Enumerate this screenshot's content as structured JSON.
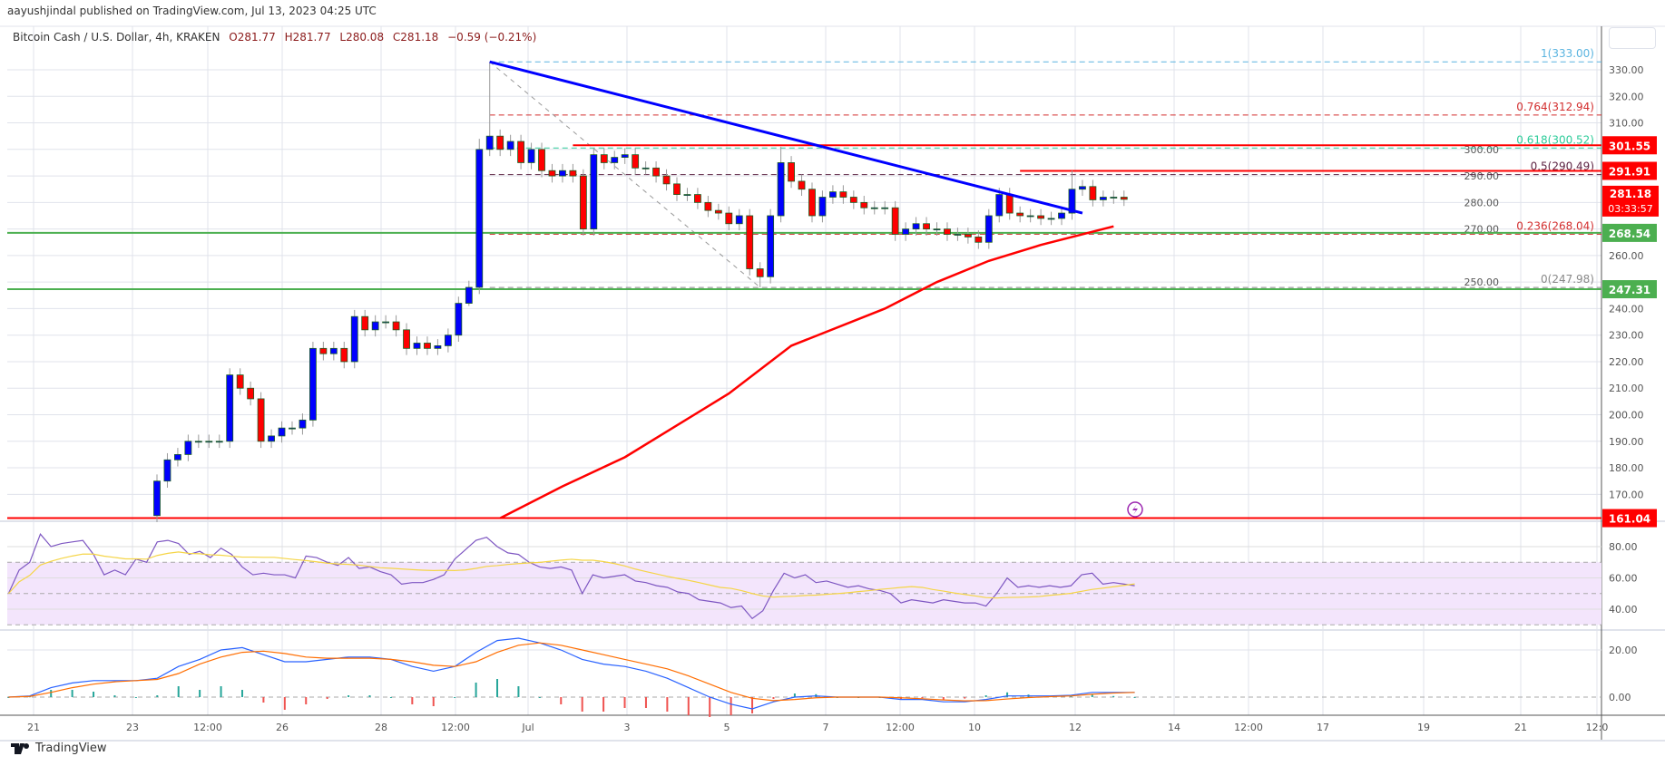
{
  "header": {
    "published": "aayushjindal published on TradingView.com, Jul 13, 2023 04:25 UTC"
  },
  "legend": {
    "symbol": "Bitcoin Cash / U.S. Dollar, 4h, KRAKEN",
    "open": "O281.77",
    "high": "H281.77",
    "low": "L280.08",
    "close": "C281.18",
    "change": "−0.59 (−0.21%)"
  },
  "footer": {
    "brand": "TradingView"
  },
  "colors": {
    "up": "#0000ff",
    "down": "#ff0000",
    "trend": "#0000ff",
    "sma": "#ff0000",
    "support": "#4caf50",
    "resistance": "#ff0000"
  },
  "chart_data": {
    "type": "candlestick",
    "price_axis": {
      "min": 160,
      "max": 330,
      "ticks": [
        "330.00",
        "320.00",
        "310.00",
        "300.00",
        "290.00",
        "280.00",
        "270.00",
        "260.00",
        "250.00",
        "240.00",
        "230.00",
        "220.00",
        "210.00",
        "200.00",
        "190.00",
        "180.00",
        "170.00"
      ]
    },
    "time_labels": [
      "21",
      "23",
      "12:00",
      "26",
      "28",
      "12:00",
      "Jul",
      "3",
      "5",
      "7",
      "12:00",
      "10",
      "12",
      "14",
      "12:00",
      "17",
      "19",
      "21",
      "12:0"
    ],
    "first_open": 162,
    "closes": [
      175,
      183,
      185,
      190,
      190,
      190,
      190,
      215,
      210,
      206,
      190,
      192,
      195,
      195,
      198,
      225,
      223,
      225,
      220,
      237,
      232,
      235,
      235,
      232,
      225,
      227,
      225,
      226,
      230,
      242,
      248,
      300,
      305,
      300,
      303,
      295,
      300,
      292,
      290,
      292,
      290,
      270,
      298,
      295,
      297,
      298,
      293,
      293,
      290,
      287,
      283,
      283,
      280,
      277,
      276,
      272,
      275,
      255,
      252,
      275,
      295,
      288,
      285,
      275,
      282,
      284,
      282,
      280,
      278,
      278,
      278,
      268,
      270,
      272,
      270,
      270,
      268,
      268,
      267,
      265,
      275,
      283,
      276,
      275,
      275,
      274,
      274,
      276,
      285,
      286,
      281,
      282,
      282,
      281.18
    ],
    "high_overrides": {
      "32": 333,
      "31": 304,
      "60": 301,
      "88": 292
    },
    "low_overrides": {
      "58": 248,
      "30": 241
    },
    "horizontal_levels": [
      {
        "price": 301.55,
        "label": "301.55",
        "color": "#ff0000",
        "from_index": 40
      },
      {
        "price": 291.91,
        "label": "291.91",
        "color": "#ff0000",
        "from_index": 83
      },
      {
        "price": 268.54,
        "label": "268.54",
        "color": "#4caf50",
        "from_index": -99
      },
      {
        "price": 247.31,
        "label": "247.31",
        "color": "#4caf50",
        "from_index": -99
      },
      {
        "price": 161.04,
        "label": "161.04",
        "color": "#ff0000",
        "from_index": -99
      }
    ],
    "fib": {
      "from_index": 32,
      "levels": [
        {
          "ratio": "1",
          "price": 333.0,
          "label": "1(333.00)",
          "color": "#5ab4e0"
        },
        {
          "ratio": "0.764",
          "price": 312.94,
          "label": "0.764(312.94)",
          "color": "#d32f2f"
        },
        {
          "ratio": "0.618",
          "price": 300.52,
          "label": "0.618(300.52)",
          "color": "#2ecc9a"
        },
        {
          "ratio": "0.5",
          "price": 290.49,
          "label": "0.5(290.49)",
          "color": "#5d2443"
        },
        {
          "ratio": "0.236",
          "price": 268.04,
          "label": "0.236(268.04)",
          "color": "#d32f2f"
        },
        {
          "ratio": "0",
          "price": 247.98,
          "label": "0(247.98)",
          "color": "#888888"
        }
      ]
    },
    "fib_diagonal": [
      [
        32,
        333
      ],
      [
        58,
        248
      ]
    ],
    "trendline": [
      [
        32,
        333
      ],
      [
        89,
        276
      ]
    ],
    "sma": [
      [
        33,
        161
      ],
      [
        39,
        173
      ],
      [
        45,
        184
      ],
      [
        55,
        208
      ],
      [
        61,
        226
      ],
      [
        70,
        240
      ],
      [
        75,
        250
      ],
      [
        80,
        258
      ],
      [
        85,
        264
      ],
      [
        92,
        271
      ]
    ],
    "last_price": {
      "label": "281.18",
      "countdown": "03:33:57"
    },
    "rsi": {
      "ticks": [
        "80.00",
        "60.00",
        "40.00"
      ],
      "upper": 70,
      "lower": 30,
      "values": [
        50,
        65,
        70,
        88,
        80,
        82,
        83,
        84,
        75,
        62,
        65,
        62,
        72,
        70,
        83,
        84,
        82,
        75,
        77,
        73,
        79,
        75,
        67,
        62,
        63,
        62,
        62,
        60,
        74,
        73,
        70,
        68,
        73,
        66,
        67,
        64,
        62,
        56,
        57,
        57,
        59,
        62,
        72,
        78,
        84,
        86,
        80,
        76,
        75,
        70,
        67,
        66,
        67,
        65,
        50,
        62,
        60,
        61,
        62,
        58,
        57,
        55,
        54,
        51,
        50,
        46,
        45,
        44,
        41,
        42,
        34,
        39,
        52,
        63,
        60,
        62,
        57,
        58,
        56,
        54,
        55,
        53,
        52,
        50,
        44,
        46,
        45,
        44,
        46,
        45,
        44,
        44,
        42,
        50,
        60,
        54,
        55,
        54,
        55,
        54,
        55,
        62,
        63,
        56,
        57,
        56,
        55
      ]
    },
    "macd": {
      "ticks": [
        "20.00",
        "0.00"
      ],
      "macd": [
        0,
        0.5,
        4,
        6,
        7,
        7,
        7,
        8,
        13,
        16,
        20,
        21,
        18,
        15,
        15,
        16,
        17,
        17,
        16,
        13,
        11,
        13,
        19,
        24,
        25,
        23,
        20,
        16,
        14,
        13,
        11,
        8,
        4,
        0,
        -3,
        -5,
        -2,
        0,
        0.5,
        0,
        0,
        0,
        -1,
        -1,
        -2,
        -2,
        -1,
        0.5,
        0.5,
        0.5,
        0.8,
        2,
        2,
        2
      ],
      "signal": [
        0,
        0.3,
        2,
        4,
        5.5,
        6.5,
        7,
        7.5,
        10,
        14,
        17,
        19,
        19.5,
        18.5,
        17,
        16.5,
        16.5,
        16.5,
        16,
        15,
        13.5,
        13,
        15,
        19,
        22,
        23,
        22,
        20,
        18,
        16,
        14,
        12,
        9,
        5.5,
        2,
        -0.5,
        -1.5,
        -1,
        -0.3,
        0,
        0,
        0,
        -0.3,
        -0.7,
        -1.2,
        -1.6,
        -1.5,
        -0.8,
        -0.2,
        0.2,
        0.5,
        1.2,
        1.7,
        2
      ]
    }
  }
}
